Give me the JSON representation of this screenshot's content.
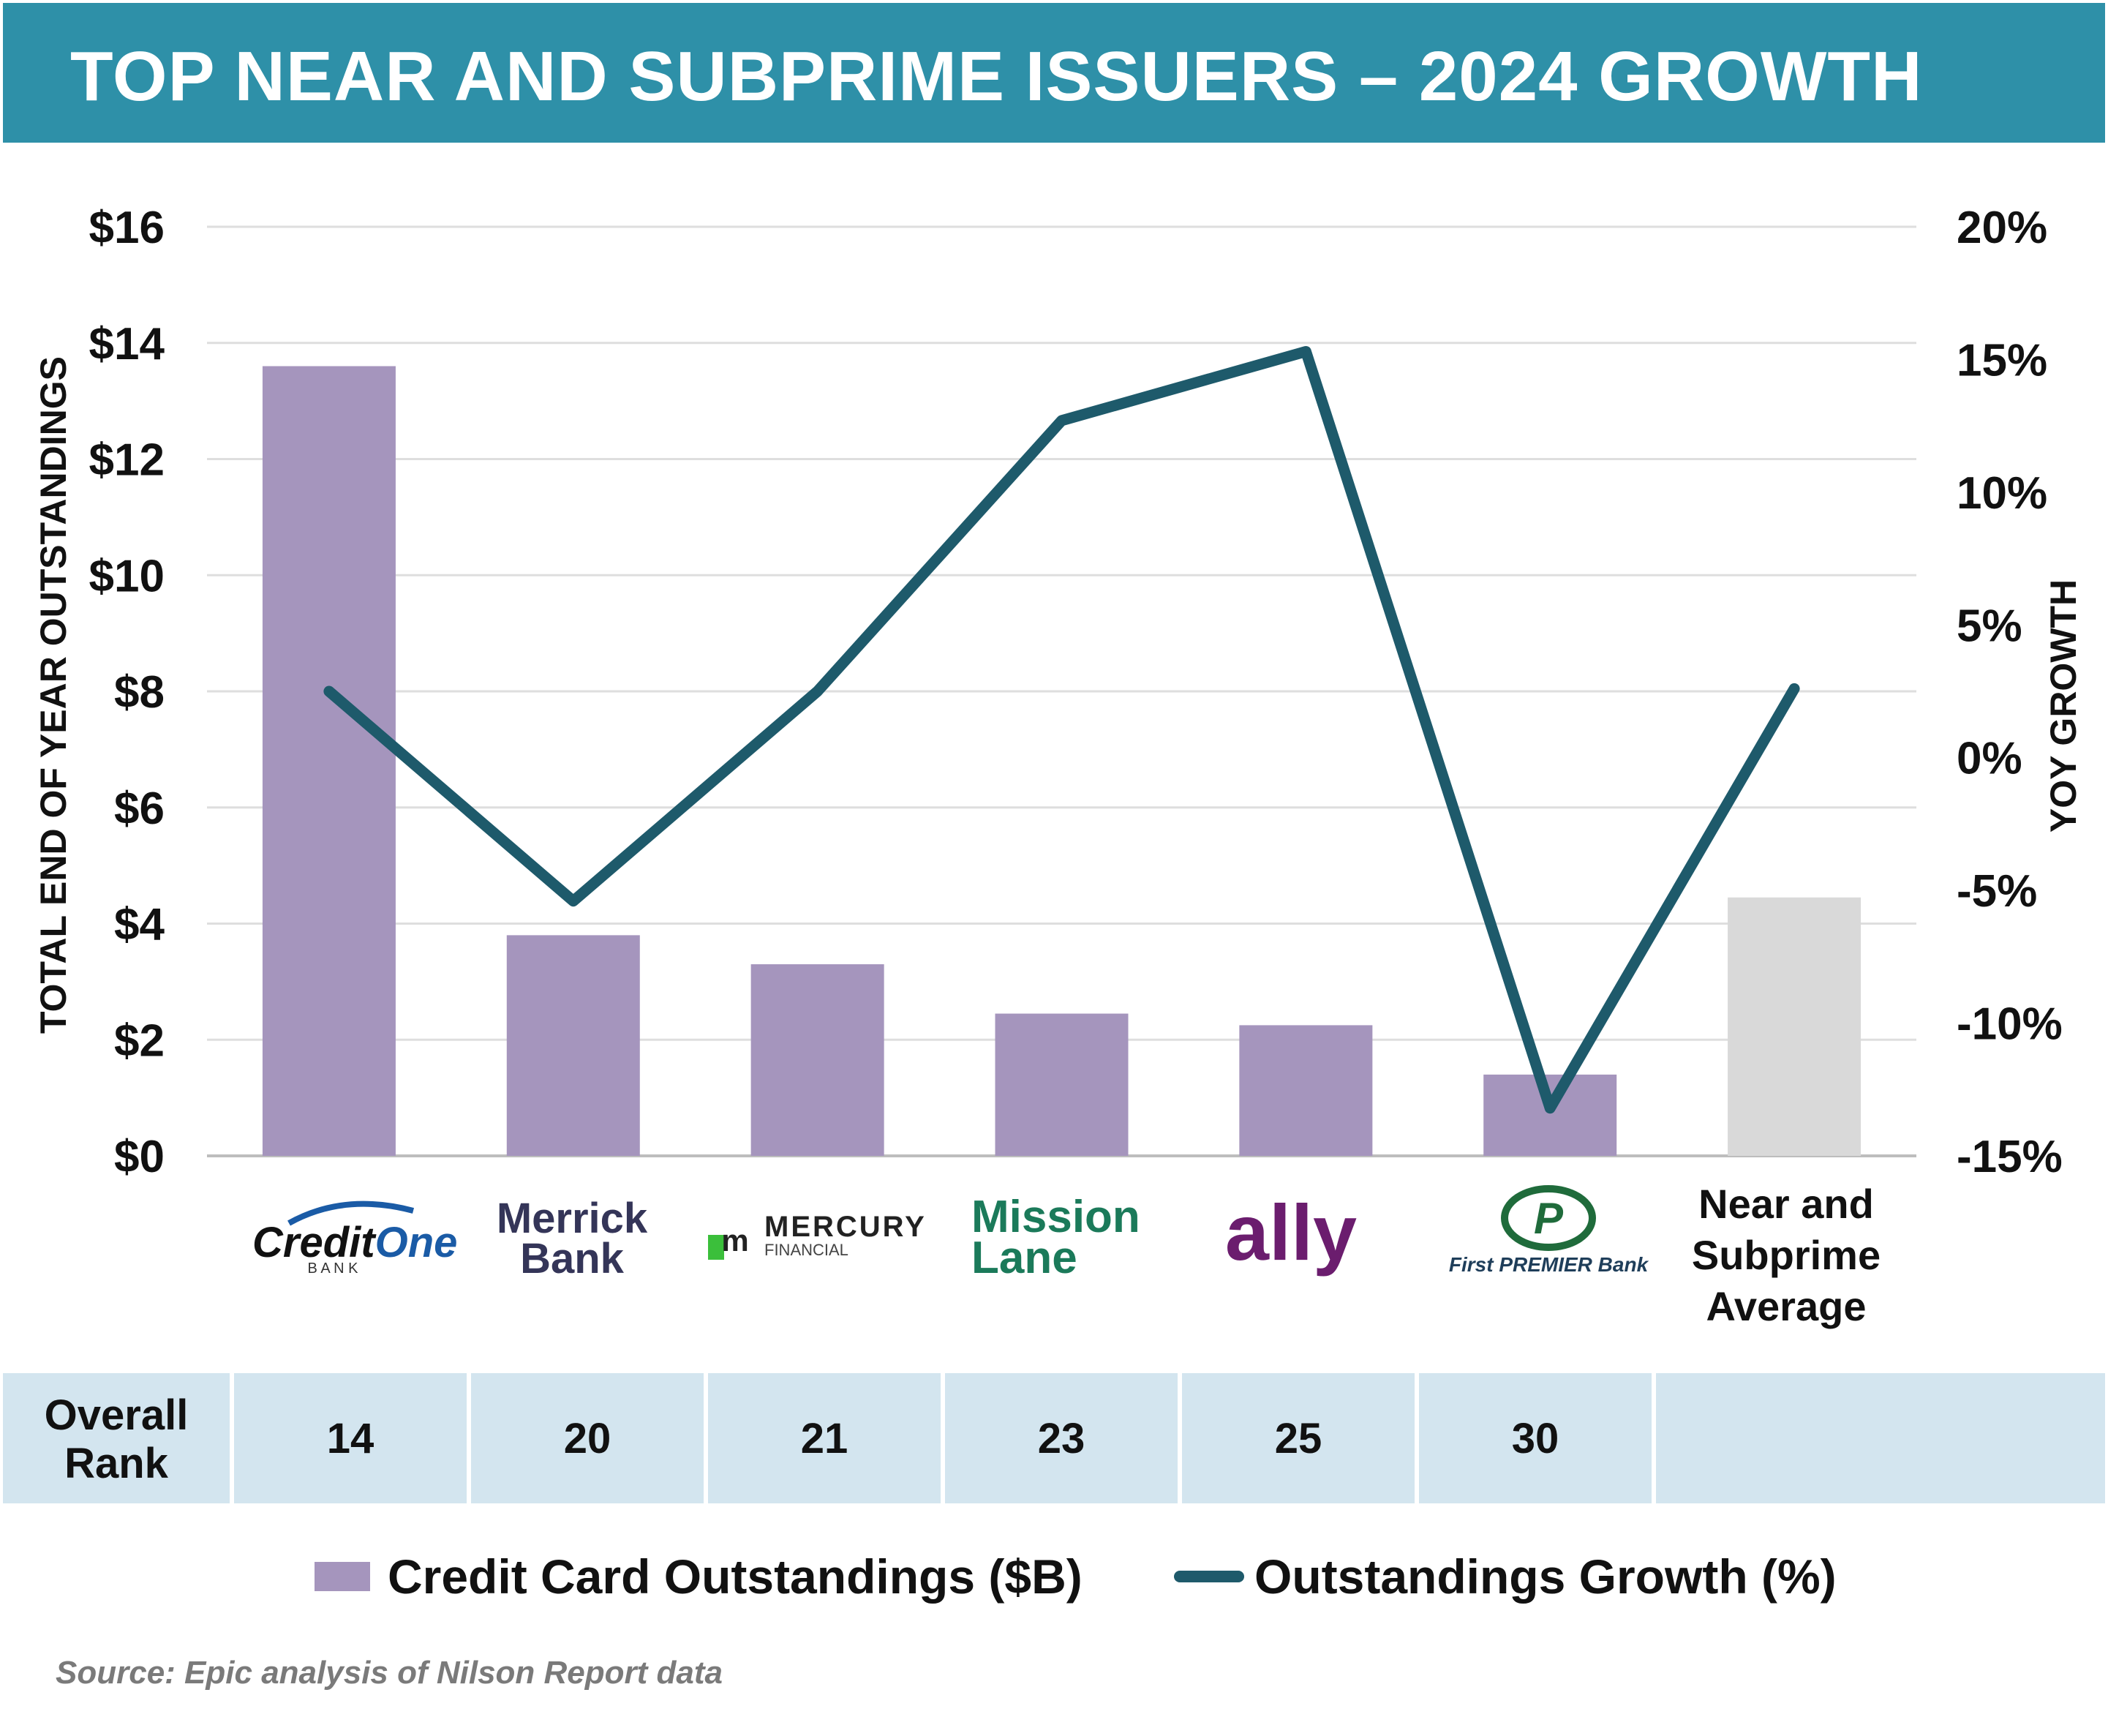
{
  "title": "TOP NEAR AND SUBPRIME ISSUERS – 2024 GROWTH",
  "chart_data": {
    "type": "bar+line",
    "categories": [
      "Credit One Bank",
      "Merrick Bank",
      "Mercury Financial",
      "Mission Lane",
      "ally",
      "First PREMIER Bank",
      "Near and Subprime Average"
    ],
    "series": [
      {
        "name": "Credit Card Outstandings ($B)",
        "type": "bar",
        "axis": "left",
        "values": [
          13.6,
          3.8,
          3.3,
          2.45,
          2.25,
          1.4,
          4.45
        ],
        "color": "#a595bd",
        "highlight_color": "#d9d9d9"
      },
      {
        "name": "Outstandings Growth (%)",
        "type": "line",
        "axis": "right",
        "values": [
          2.5,
          -5.4,
          2.5,
          12.7,
          15.3,
          -13.2,
          2.6
        ],
        "color": "#1e5a6b"
      }
    ],
    "ylabel": "TOTAL END OF YEAR OUTSTANDINGS",
    "y2label": "YOY GROWTH",
    "ylim": [
      0,
      16
    ],
    "y2lim": [
      -15,
      20
    ],
    "yticks": [
      "$0",
      "$2",
      "$4",
      "$6",
      "$8",
      "$10",
      "$12",
      "$14",
      "$16"
    ],
    "y2ticks": [
      "-15%",
      "-10%",
      "-5%",
      "0%",
      "5%",
      "10%",
      "15%",
      "20%"
    ],
    "grid": true,
    "legend": "bottom-center"
  },
  "logos": {
    "creditone": {
      "word1": "Credit",
      "word2": "One",
      "sub": "B A N K"
    },
    "merrick": {
      "line1": "Merrick",
      "line2": "Bank"
    },
    "mercury": {
      "mark": "m",
      "line1": "MERCURY",
      "line2": "FINANCIAL"
    },
    "missionlane": {
      "line1": "Mission",
      "line2": "Lane"
    },
    "ally": {
      "text": "ally"
    },
    "firstpremier": {
      "mark": "P",
      "text": "First PREMIER Bank"
    },
    "average": {
      "line1": "Near and",
      "line2": "Subprime",
      "line3": "Average"
    }
  },
  "rank_table": {
    "header_line1": "Overall",
    "header_line2": "Rank",
    "ranks": [
      "14",
      "20",
      "21",
      "23",
      "25",
      "30"
    ]
  },
  "legend": {
    "bar_label": "Credit Card Outstandings ($B)",
    "line_label": "Outstandings Growth (%)"
  },
  "source": "Source: Epic analysis of Nilson Report data"
}
